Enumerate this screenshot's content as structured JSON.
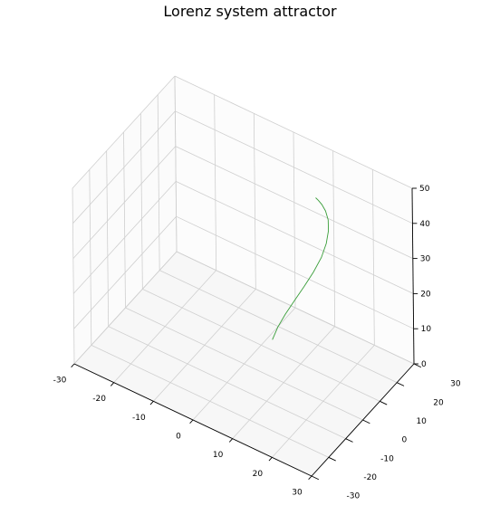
{
  "chart_data": {
    "type": "line",
    "projection": "3d",
    "title": "Lorenz system attractor",
    "xlabel": "",
    "ylabel": "",
    "zlabel": "",
    "xlim": [
      -30,
      30
    ],
    "ylim": [
      -30,
      30
    ],
    "zlim": [
      0,
      50
    ],
    "x_ticks": [
      "-30",
      "-20",
      "-10",
      "0",
      "10",
      "20",
      "30"
    ],
    "y_ticks": [
      "-30",
      "-20",
      "-10",
      "0",
      "10",
      "20",
      "30"
    ],
    "z_ticks": [
      "0",
      "10",
      "20",
      "30",
      "40",
      "50"
    ],
    "grid": true,
    "series": [
      {
        "color": "#3a9e3a",
        "x": [
          1.1,
          1.8,
          3.0,
          4.6,
          6.5,
          8.5,
          10.3,
          11.6,
          12.4,
          12.7,
          12.4,
          11.8,
          11.1,
          10.6
        ],
        "y": [
          14.0,
          15.7,
          17.4,
          19.0,
          20.4,
          21.4,
          21.9,
          21.9,
          21.4,
          20.6,
          19.8,
          19.1,
          18.6,
          18.3
        ],
        "z": [
          0.0,
          3.1,
          6.5,
          10.3,
          14.6,
          19.3,
          24.1,
          28.8,
          33.1,
          36.8,
          39.6,
          41.5,
          42.6,
          43.2
        ]
      }
    ]
  }
}
